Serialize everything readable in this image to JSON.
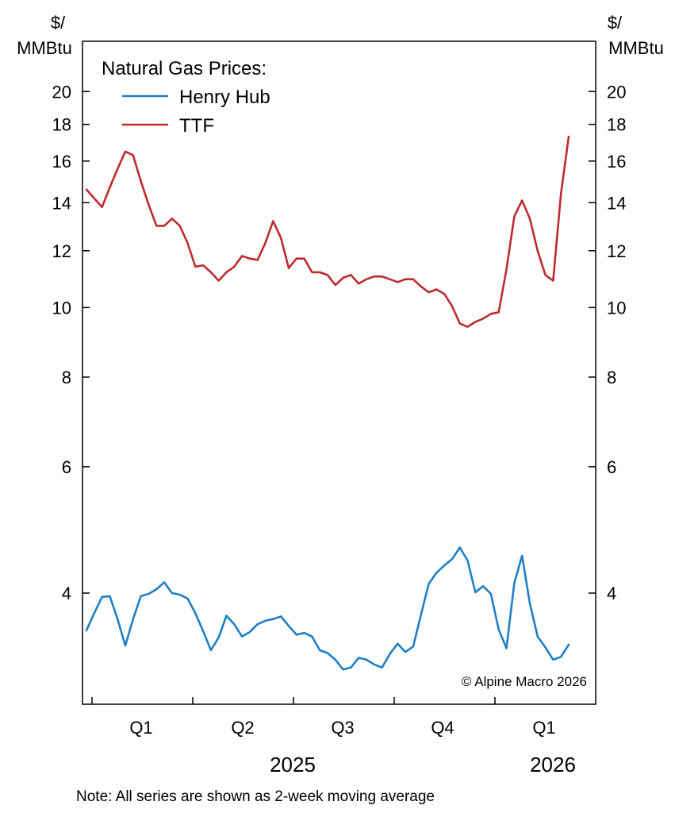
{
  "chart_data": {
    "type": "line",
    "title": "Natural Gas Prices:",
    "ylabel_left": [
      "$/",
      "MMBtu"
    ],
    "ylabel_right": [
      "$/",
      "MMBtu"
    ],
    "yscale": "log",
    "ylim": [
      2.8,
      23.5
    ],
    "yticks": [
      4,
      6,
      8,
      10,
      12,
      14,
      16,
      18,
      20
    ],
    "x_quarter_labels": [
      "Q1",
      "Q2",
      "Q3",
      "Q4",
      "Q1"
    ],
    "x_year_labels": [
      "2025",
      "2026"
    ],
    "copyright": "© Alpine Macro 2026",
    "note": "Note: All series are shown as 2-week moving average",
    "series": [
      {
        "name": "Henry Hub",
        "color": "#1f7fc4",
        "values": [
          3.55,
          3.75,
          3.95,
          3.96,
          3.68,
          3.38,
          3.68,
          3.96,
          3.99,
          4.05,
          4.14,
          4.0,
          3.98,
          3.93,
          3.75,
          3.54,
          3.33,
          3.47,
          3.72,
          3.62,
          3.48,
          3.53,
          3.62,
          3.66,
          3.68,
          3.71,
          3.6,
          3.5,
          3.52,
          3.48,
          3.33,
          3.3,
          3.23,
          3.13,
          3.15,
          3.25,
          3.23,
          3.18,
          3.15,
          3.29,
          3.4,
          3.31,
          3.37,
          3.73,
          4.12,
          4.27,
          4.37,
          4.46,
          4.63,
          4.44,
          4.01,
          4.09,
          3.99,
          3.56,
          3.35,
          4.13,
          4.51,
          3.87,
          3.48,
          3.36,
          3.23,
          3.26,
          3.39
        ]
      },
      {
        "name": "TTF",
        "color": "#be2a2e",
        "values": [
          14.6,
          14.2,
          13.8,
          14.7,
          15.6,
          16.5,
          16.3,
          15.0,
          13.9,
          13.0,
          13.0,
          13.3,
          13.0,
          12.3,
          11.4,
          11.45,
          11.2,
          10.9,
          11.2,
          11.4,
          11.8,
          11.7,
          11.65,
          12.3,
          13.2,
          12.5,
          11.35,
          11.7,
          11.7,
          11.2,
          11.2,
          11.1,
          10.75,
          11.0,
          11.1,
          10.8,
          10.95,
          11.05,
          11.05,
          10.95,
          10.85,
          10.95,
          10.95,
          10.7,
          10.5,
          10.6,
          10.45,
          10.05,
          9.5,
          9.4,
          9.55,
          9.65,
          9.8,
          9.85,
          11.3,
          13.4,
          14.1,
          13.3,
          12.0,
          11.1,
          10.9,
          14.4,
          17.3
        ]
      }
    ]
  }
}
